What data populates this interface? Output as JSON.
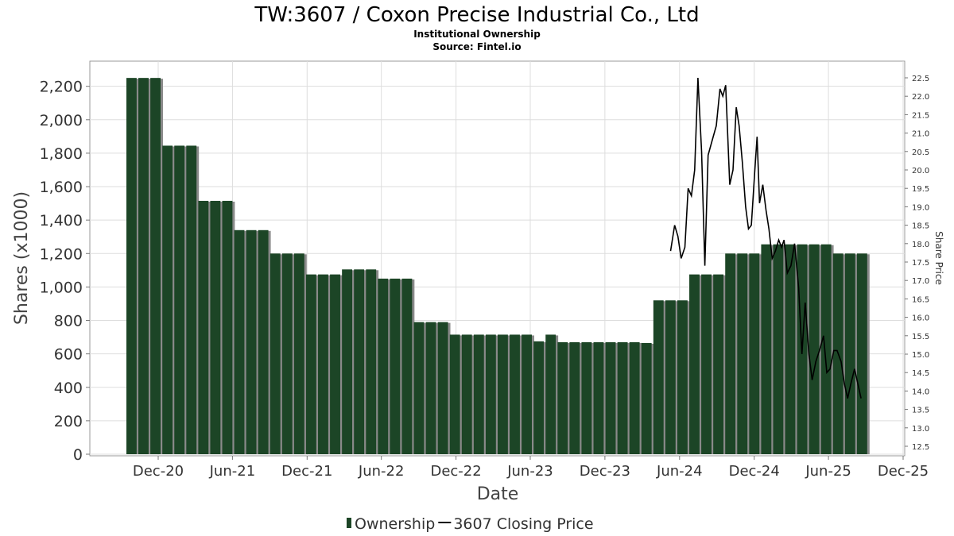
{
  "title": "TW:3607 / Coxon Precise Industrial Co., Ltd",
  "subtitle": "Institutional Ownership",
  "source": "Source: Fintel.io",
  "colors": {
    "bar": "#1c4526",
    "bar_shadow": "#8a8a8a",
    "line": "#000000",
    "grid": "#dddddd"
  },
  "chart_data": {
    "type": "bar",
    "xlabel": "Date",
    "ylabel": "Shares (x1000)",
    "y2label": "Share Price",
    "ylim": [
      0,
      2350
    ],
    "y2lim": [
      12.3,
      22.9
    ],
    "yticks": [
      0,
      200,
      400,
      600,
      800,
      1000,
      1200,
      1400,
      1600,
      1800,
      2000,
      2200
    ],
    "yticklabels": [
      "0",
      "200",
      "400",
      "600",
      "800",
      "1,000",
      "1,200",
      "1,400",
      "1,600",
      "1,800",
      "2,000",
      "2,200"
    ],
    "y2ticks": [
      "12.5",
      "13.0",
      "13.5",
      "14.0",
      "14.5",
      "15.0",
      "15.5",
      "16.0",
      "16.5",
      "17.0",
      "17.5",
      "18.0",
      "18.5",
      "19.0",
      "19.5",
      "20.0",
      "20.5",
      "21.0",
      "21.5",
      "22.0",
      "22.5"
    ],
    "xticklabels": [
      "Dec-20",
      "Jun-21",
      "Dec-21",
      "Jun-22",
      "Dec-22",
      "Jun-23",
      "Dec-23",
      "Jun-24",
      "Dec-24",
      "Jun-25",
      "Dec-25"
    ],
    "grid": true,
    "legend": "bottom",
    "series": [
      {
        "name": "Ownership",
        "type": "bar",
        "values": [
          2250,
          2250,
          2250,
          1845,
          1845,
          1845,
          1515,
          1515,
          1515,
          1340,
          1340,
          1340,
          1200,
          1200,
          1200,
          1075,
          1075,
          1075,
          1105,
          1105,
          1105,
          1050,
          1050,
          1050,
          790,
          790,
          790,
          715,
          715,
          715,
          715,
          715,
          715,
          715,
          675,
          715,
          670,
          670,
          670,
          670,
          670,
          670,
          670,
          665,
          920,
          920,
          920,
          1075,
          1075,
          1075,
          1200,
          1200,
          1200,
          1255,
          1255,
          1255,
          1255,
          1255,
          1255,
          1200,
          1200,
          1200
        ]
      },
      {
        "name": "3607 Closing Price",
        "type": "line",
        "points": [
          [
            "2024-05-10",
            17.8
          ],
          [
            "2024-05-20",
            18.5
          ],
          [
            "2024-05-28",
            18.2
          ],
          [
            "2024-06-05",
            17.6
          ],
          [
            "2024-06-14",
            17.9
          ],
          [
            "2024-06-22",
            19.5
          ],
          [
            "2024-06-30",
            19.3
          ],
          [
            "2024-07-08",
            20.0
          ],
          [
            "2024-07-16",
            22.5
          ],
          [
            "2024-07-25",
            20.5
          ],
          [
            "2024-08-02",
            17.4
          ],
          [
            "2024-08-10",
            20.4
          ],
          [
            "2024-08-20",
            20.8
          ],
          [
            "2024-08-30",
            21.2
          ],
          [
            "2024-09-08",
            22.2
          ],
          [
            "2024-09-15",
            22.0
          ],
          [
            "2024-09-22",
            22.3
          ],
          [
            "2024-10-02",
            19.6
          ],
          [
            "2024-10-10",
            20.0
          ],
          [
            "2024-10-18",
            21.7
          ],
          [
            "2024-10-25",
            21.2
          ],
          [
            "2024-11-02",
            20.2
          ],
          [
            "2024-11-10",
            19.0
          ],
          [
            "2024-11-17",
            18.4
          ],
          [
            "2024-11-24",
            18.5
          ],
          [
            "2024-12-02",
            19.9
          ],
          [
            "2024-12-08",
            20.9
          ],
          [
            "2024-12-14",
            19.1
          ],
          [
            "2024-12-22",
            19.6
          ],
          [
            "2024-12-30",
            18.9
          ],
          [
            "2025-01-06",
            18.4
          ],
          [
            "2025-01-14",
            17.6
          ],
          [
            "2025-01-22",
            17.8
          ],
          [
            "2025-01-30",
            18.1
          ],
          [
            "2025-02-06",
            17.9
          ],
          [
            "2025-02-12",
            18.1
          ],
          [
            "2025-02-20",
            17.2
          ],
          [
            "2025-03-01",
            17.4
          ],
          [
            "2025-03-10",
            18.0
          ],
          [
            "2025-03-20",
            16.8
          ],
          [
            "2025-03-28",
            15.0
          ],
          [
            "2025-04-05",
            16.4
          ],
          [
            "2025-04-14",
            15.0
          ],
          [
            "2025-04-22",
            14.3
          ],
          [
            "2025-05-01",
            14.8
          ],
          [
            "2025-05-10",
            15.1
          ],
          [
            "2025-05-20",
            15.5
          ],
          [
            "2025-05-28",
            14.5
          ],
          [
            "2025-06-05",
            14.6
          ],
          [
            "2025-06-14",
            15.1
          ],
          [
            "2025-06-22",
            15.1
          ],
          [
            "2025-07-02",
            14.8
          ],
          [
            "2025-07-10",
            14.2
          ],
          [
            "2025-07-18",
            13.8
          ],
          [
            "2025-07-26",
            14.2
          ],
          [
            "2025-08-04",
            14.6
          ],
          [
            "2025-08-12",
            14.2
          ],
          [
            "2025-08-20",
            13.8
          ]
        ]
      }
    ]
  }
}
